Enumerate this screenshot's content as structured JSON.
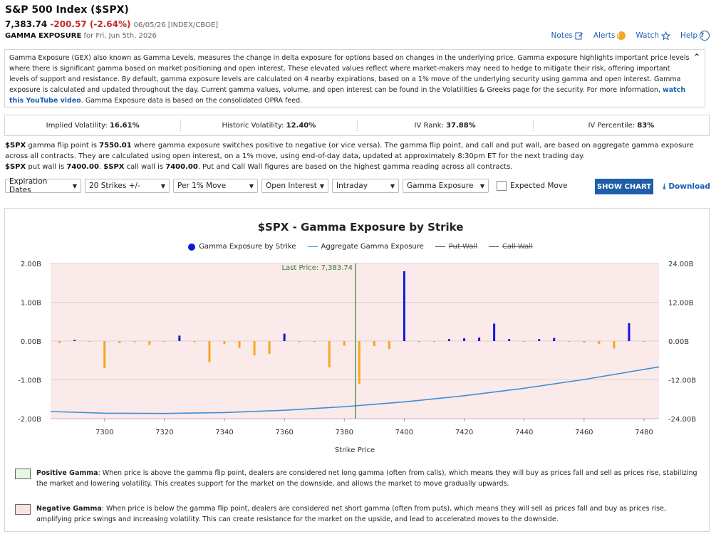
{
  "header": {
    "title": "S&P 500 Index ($SPX)",
    "price": "7,383.74",
    "change": "-200.57 (-2.64%)",
    "meta": "06/05/26 [INDEX/CBOE]",
    "section": "GAMMA EXPOSURE",
    "section_for": "for Fri, Jun 5th, 2026"
  },
  "links": {
    "notes": "Notes",
    "alerts": "Alerts",
    "watch": "Watch",
    "help": "Help"
  },
  "info": {
    "text_before": "Gamma Exposure (GEX) also known as Gamma Levels, measures the change in delta exposure for options based on changes in the underlying price. Gamma exposure highlights important price levels where there is significant gamma based on market positioning and open interest. These elevated values reflect where market-makers may need to hedge to mitigate their risk, offering important levels of support and resistance. By default, gamma exposure levels are calculated on 4 nearby expirations, based on a 1% move of the underlying security using gamma and open interest. Gamma exposure is calculated and updated throughout the day. Current gamma values, volume, and open interest can be found in the Volatilities & Greeks page for the security. For more information, ",
    "link": "watch this YouTube video",
    "text_after": ". Gamma Exposure data is based on the consolidated OPRA feed."
  },
  "volatility": {
    "iv_label": "Implied Volatility:",
    "iv": "16.61%",
    "hv_label": "Historic Volatility:",
    "hv": "12.40%",
    "rank_label": "IV Rank:",
    "rank": "37.88%",
    "pct_label": "IV Percentile:",
    "pct": "83%"
  },
  "description": {
    "t1": "$SPX",
    "t2": " gamma flip point is ",
    "flip": "7550.01",
    "t3": " where gamma exposure switches positive to negative (or vice versa). The gamma flip point, and call and put wall, are based on aggregate gamma exposure across all contracts. They are calculated using open interest, on a 1% move, using end-of-day data, updated at approximately 8:30pm ET for the next trading day.",
    "t4": "$SPX",
    "t5": " put wall is ",
    "put_wall": "7400.00",
    "t6": ". ",
    "t7": "$SPX",
    "t8": " call wall is ",
    "call_wall": "7400.00",
    "t9": ". Put and Call Wall figures are based on the highest gamma reading across all contracts."
  },
  "controls": {
    "expiration": "Expiration Dates",
    "strikes": "20 Strikes +/-",
    "move": "Per 1% Move",
    "source": "Open Interest",
    "timeframe": "Intraday",
    "metric": "Gamma Exposure",
    "expected_move": "Expected Move",
    "show_chart": "SHOW CHART",
    "download": "Download"
  },
  "chart_data": {
    "type": "bar",
    "title": "$SPX - Gamma Exposure by Strike",
    "xlabel": "Strike Price",
    "legend": [
      "Gamma Exposure by Strike",
      "Aggregate Gamma Exposure",
      "Put Wall",
      "Call Wall"
    ],
    "last_price_label": "Last Price: 7,383.74",
    "last_price": 7383.74,
    "xlim": [
      7282,
      7485
    ],
    "xticks": [
      "7300",
      "7320",
      "7340",
      "7360",
      "7380",
      "7400",
      "7420",
      "7440",
      "7460",
      "7480"
    ],
    "ylim_left": [
      -2.0,
      2.0
    ],
    "yticks_left": [
      "2.00B",
      "1.00B",
      "0.00B",
      "-1.00B",
      "-2.00B"
    ],
    "ylim_right": [
      -24.0,
      24.0
    ],
    "yticks_right": [
      "24.00B",
      "12.00B",
      "0.00B",
      "-12.00B",
      "-24.00B"
    ],
    "colors": {
      "positive": "#1414e0",
      "negative": "#f5a623",
      "aggregate": "#3d8fd8",
      "last_price": "#2e7d32",
      "background": "#fbeaea"
    },
    "gamma_by_strike": [
      {
        "strike": 7285,
        "value": -0.05
      },
      {
        "strike": 7290,
        "value": 0.03
      },
      {
        "strike": 7295,
        "value": -0.02
      },
      {
        "strike": 7300,
        "value": -0.7
      },
      {
        "strike": 7305,
        "value": -0.05
      },
      {
        "strike": 7310,
        "value": -0.03
      },
      {
        "strike": 7315,
        "value": -0.1
      },
      {
        "strike": 7320,
        "value": -0.02
      },
      {
        "strike": 7325,
        "value": 0.14
      },
      {
        "strike": 7330,
        "value": -0.03
      },
      {
        "strike": 7335,
        "value": -0.55
      },
      {
        "strike": 7340,
        "value": -0.07
      },
      {
        "strike": 7345,
        "value": -0.18
      },
      {
        "strike": 7350,
        "value": -0.37
      },
      {
        "strike": 7355,
        "value": -0.33
      },
      {
        "strike": 7360,
        "value": 0.19
      },
      {
        "strike": 7365,
        "value": -0.03
      },
      {
        "strike": 7370,
        "value": -0.02
      },
      {
        "strike": 7375,
        "value": -0.68
      },
      {
        "strike": 7380,
        "value": -0.12
      },
      {
        "strike": 7385,
        "value": -1.1
      },
      {
        "strike": 7390,
        "value": -0.13
      },
      {
        "strike": 7395,
        "value": -0.2
      },
      {
        "strike": 7400,
        "value": 1.8
      },
      {
        "strike": 7405,
        "value": -0.03
      },
      {
        "strike": 7410,
        "value": -0.02
      },
      {
        "strike": 7415,
        "value": 0.05
      },
      {
        "strike": 7420,
        "value": 0.07
      },
      {
        "strike": 7425,
        "value": 0.09
      },
      {
        "strike": 7430,
        "value": 0.45
      },
      {
        "strike": 7435,
        "value": 0.05
      },
      {
        "strike": 7440,
        "value": -0.02
      },
      {
        "strike": 7445,
        "value": 0.05
      },
      {
        "strike": 7450,
        "value": 0.08
      },
      {
        "strike": 7455,
        "value": -0.01
      },
      {
        "strike": 7460,
        "value": -0.04
      },
      {
        "strike": 7465,
        "value": -0.08
      },
      {
        "strike": 7470,
        "value": -0.19
      },
      {
        "strike": 7475,
        "value": 0.46
      },
      {
        "strike": 7480,
        "value": -0.02
      }
    ],
    "aggregate": {
      "x": [
        7282,
        7300,
        7320,
        7340,
        7360,
        7380,
        7400,
        7420,
        7440,
        7460,
        7485
      ],
      "y": [
        -21.8,
        -22.3,
        -22.4,
        -22.1,
        -21.4,
        -20.3,
        -18.8,
        -16.9,
        -14.6,
        -11.9,
        -8.0
      ]
    }
  },
  "notes": {
    "pos_title": "Positive Gamma",
    "pos_text": ": When price is above the gamma flip point, dealers are considered net long gamma (often from calls), which means they will buy as prices fall and sell as prices rise, stabilizing the market and lowering volatility. This creates support for the market on the downside, and allows the market to move gradually upwards.",
    "neg_title": "Negative Gamma",
    "neg_text": ": When price is below the gamma flip point, dealers are considered net short gamma (often from puts), which means they will sell as prices fall and buy as prices rise, amplifying price swings and increasing volatility. This can create resistance for the market on the upside, and lead to accelerated moves to the downside.",
    "pos_color": "#e6f7e0",
    "neg_color": "#fbe3e3"
  }
}
